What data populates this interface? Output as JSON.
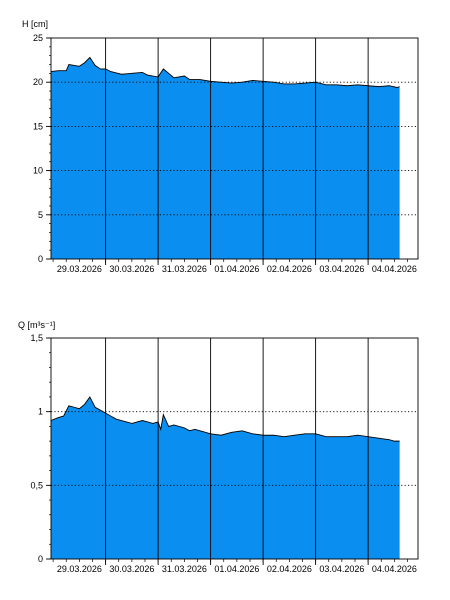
{
  "colors": {
    "fill": "#0a8ff0",
    "outline": "#000000",
    "grid": "#000000",
    "background": "#ffffff"
  },
  "chart_data": [
    {
      "type": "area",
      "ylabel": "H [cm]",
      "ylim": [
        0,
        25
      ],
      "y_ticks": [
        "0",
        "5",
        "10",
        "15",
        "20",
        "25"
      ],
      "y_tick_values": [
        0,
        5,
        10,
        15,
        20,
        25
      ],
      "x_tick_labels": [
        "29.03.2026",
        "30.03.2026",
        "31.03.2026",
        "01.04.2026",
        "02.04.2026",
        "03.04.2026",
        "04.04.2026"
      ],
      "x_range_days": [
        -0.04,
        6.95
      ],
      "dotted_grid_y": [
        5,
        10,
        15,
        20
      ],
      "series": [
        {
          "x": [
            -0.04,
            0.1,
            0.25,
            0.3,
            0.5,
            0.6,
            0.7,
            0.8,
            0.9,
            1.0,
            1.1,
            1.3,
            1.5,
            1.7,
            1.8,
            1.9,
            2.0,
            2.1,
            2.3,
            2.5,
            2.6,
            2.8,
            3.0,
            3.2,
            3.4,
            3.6,
            3.8,
            4.0,
            4.2,
            4.4,
            4.6,
            4.8,
            5.0,
            5.2,
            5.4,
            5.6,
            5.8,
            6.0,
            6.2,
            6.4,
            6.55,
            6.6
          ],
          "y": [
            21.2,
            21.3,
            21.3,
            22.0,
            21.8,
            22.2,
            22.8,
            21.9,
            21.5,
            21.5,
            21.2,
            20.9,
            21.0,
            21.1,
            20.8,
            20.7,
            20.6,
            21.5,
            20.5,
            20.7,
            20.3,
            20.3,
            20.1,
            20.0,
            19.9,
            20.0,
            20.2,
            20.1,
            20.0,
            19.8,
            19.8,
            19.9,
            20.0,
            19.7,
            19.7,
            19.6,
            19.7,
            19.6,
            19.5,
            19.6,
            19.4,
            19.5
          ]
        }
      ]
    },
    {
      "type": "area",
      "ylabel": "Q [m³s⁻¹]",
      "ylim": [
        0,
        1.5
      ],
      "y_ticks": [
        "0",
        "0,5",
        "1",
        "1,5"
      ],
      "y_tick_values": [
        0,
        0.5,
        1,
        1.5
      ],
      "x_tick_labels": [
        "29.03.2026",
        "30.03.2026",
        "31.03.2026",
        "01.04.2026",
        "02.04.2026",
        "03.04.2026",
        "04.04.2026"
      ],
      "x_range_days": [
        -0.04,
        6.95
      ],
      "dotted_grid_y": [
        0.5,
        1.0
      ],
      "series": [
        {
          "x": [
            -0.04,
            0.1,
            0.2,
            0.3,
            0.4,
            0.5,
            0.6,
            0.7,
            0.8,
            0.9,
            1.0,
            1.1,
            1.2,
            1.3,
            1.5,
            1.7,
            1.8,
            1.9,
            2.0,
            2.05,
            2.1,
            2.2,
            2.3,
            2.5,
            2.6,
            2.7,
            2.8,
            3.0,
            3.2,
            3.4,
            3.6,
            3.8,
            4.0,
            4.2,
            4.4,
            4.6,
            4.8,
            5.0,
            5.2,
            5.4,
            5.6,
            5.8,
            6.0,
            6.2,
            6.4,
            6.5,
            6.6
          ],
          "y": [
            0.94,
            0.96,
            0.97,
            1.04,
            1.03,
            1.02,
            1.05,
            1.1,
            1.03,
            1.01,
            0.99,
            0.97,
            0.95,
            0.94,
            0.92,
            0.94,
            0.93,
            0.92,
            0.93,
            0.88,
            0.98,
            0.9,
            0.91,
            0.89,
            0.87,
            0.88,
            0.87,
            0.85,
            0.84,
            0.86,
            0.87,
            0.85,
            0.84,
            0.84,
            0.83,
            0.84,
            0.85,
            0.85,
            0.83,
            0.83,
            0.83,
            0.84,
            0.83,
            0.82,
            0.81,
            0.8,
            0.8
          ]
        }
      ]
    }
  ]
}
